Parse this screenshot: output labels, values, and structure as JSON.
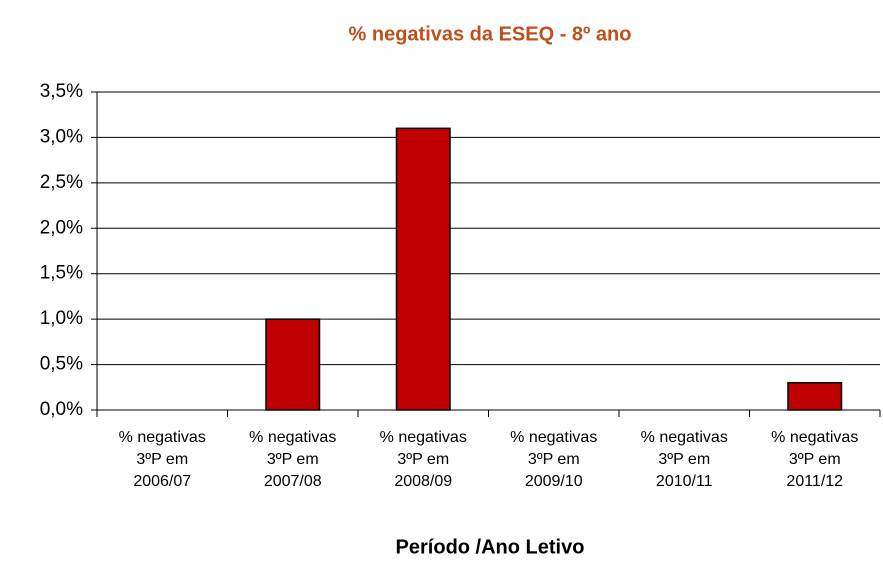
{
  "chart_data": {
    "type": "bar",
    "title": "% negativas da ESEQ - 8º ano",
    "x_label": "Período /Ano Letivo",
    "categories": [
      [
        "% negativas",
        "3ºP em",
        "2006/07"
      ],
      [
        "% negativas",
        "3ºP em",
        "2007/08"
      ],
      [
        "% negativas",
        "3ºP em",
        "2008/09"
      ],
      [
        "% negativas",
        "3ºP em",
        "2009/10"
      ],
      [
        "% negativas",
        "3ºP em",
        "2010/11"
      ],
      [
        "% negativas",
        "3ºP em",
        "2011/12"
      ]
    ],
    "values": [
      0,
      1.0,
      3.1,
      0,
      0,
      0.3
    ],
    "color": "#c00000",
    "ylim": [
      0,
      3.5
    ],
    "yticks": [
      {
        "value": 0,
        "label": "0,0%"
      },
      {
        "value": 0.5,
        "label": "0,5%"
      },
      {
        "value": 1.0,
        "label": "1,0%"
      },
      {
        "value": 1.5,
        "label": "1,5%"
      },
      {
        "value": 2.0,
        "label": "2,0%"
      },
      {
        "value": 2.5,
        "label": "2,5%"
      },
      {
        "value": 3.0,
        "label": "3,0%"
      },
      {
        "value": 3.5,
        "label": "3,5%"
      }
    ],
    "grid": true
  }
}
